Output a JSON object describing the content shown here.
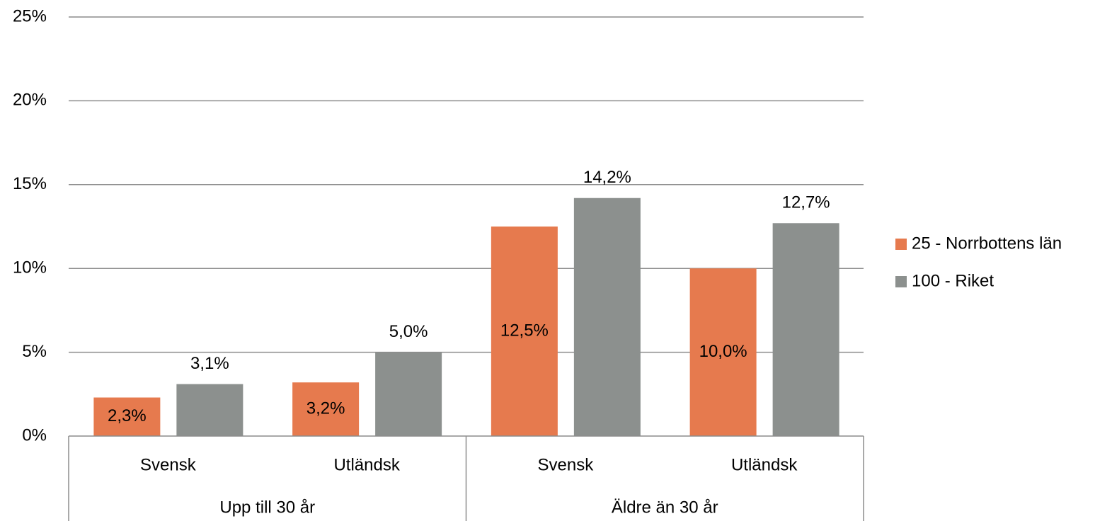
{
  "chart_data": {
    "type": "bar",
    "categories": [
      "Svensk",
      "Utländsk",
      "Svensk",
      "Utländsk"
    ],
    "groups": [
      "Upp till 30 år",
      "Äldre än 30 år"
    ],
    "series": [
      {
        "name": "25 - Norrbottens län",
        "color": "#e67a4e",
        "values": [
          2.3,
          3.2,
          12.5,
          10.0
        ],
        "value_labels": [
          "2,3%",
          "3,2%",
          "12,5%",
          "10,0%"
        ]
      },
      {
        "name": "100 - Riket",
        "color": "#8c908e",
        "values": [
          3.1,
          5.0,
          14.2,
          12.7
        ],
        "value_labels": [
          "3,1%",
          "5,0%",
          "14,2%",
          "12,7%"
        ]
      }
    ],
    "ylim": [
      0,
      25
    ],
    "yticks": [
      {
        "value": 0,
        "label": "0%"
      },
      {
        "value": 5,
        "label": "5%"
      },
      {
        "value": 10,
        "label": "10%"
      },
      {
        "value": 15,
        "label": "15%"
      },
      {
        "value": 20,
        "label": "20%"
      },
      {
        "value": 25,
        "label": "25%"
      }
    ],
    "grid": true,
    "legend": "right"
  }
}
